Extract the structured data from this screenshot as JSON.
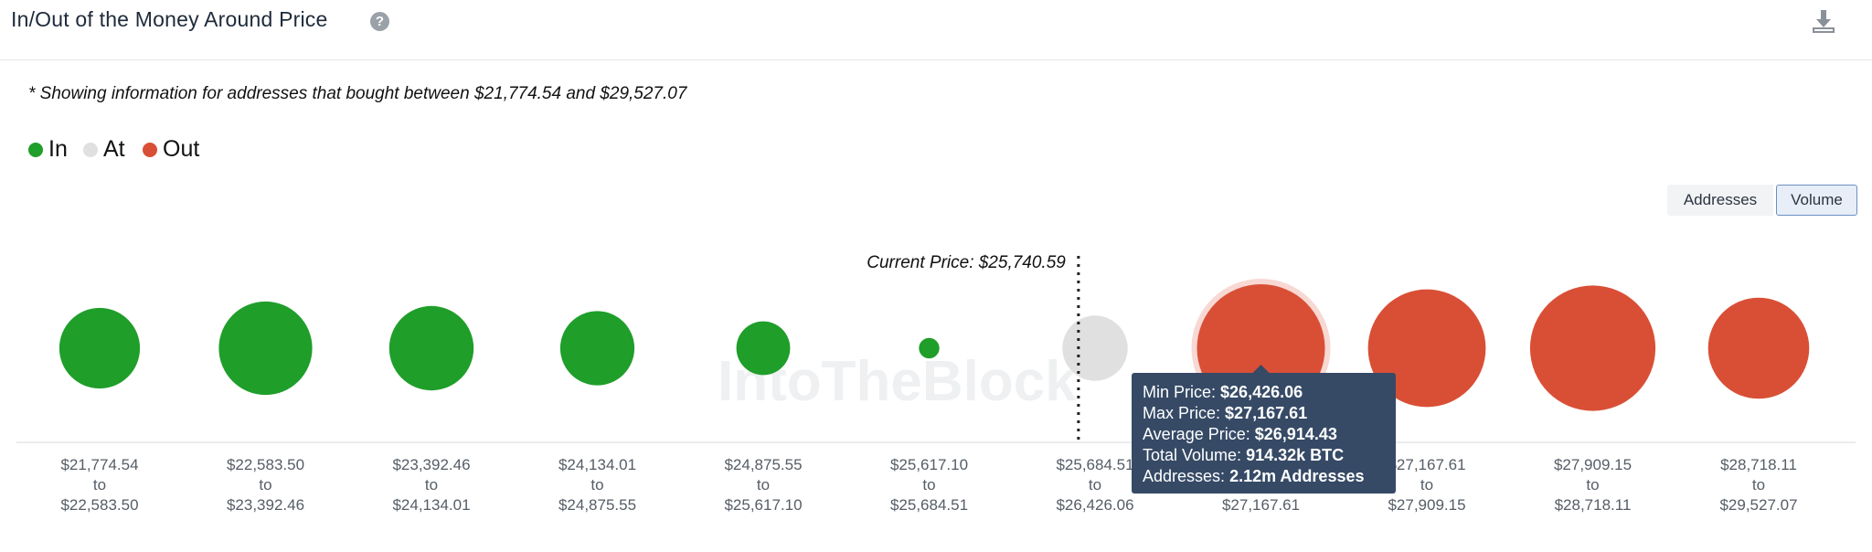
{
  "header": {
    "title": "In/Out of the Money Around Price",
    "help_icon": "question-circle-icon",
    "download_icon": "download-icon"
  },
  "note": "* Showing information for addresses that bought between $21,774.54 and $29,527.07",
  "legend": [
    {
      "label": "In",
      "color": "#1f9e2a"
    },
    {
      "label": "At",
      "color": "#e0e0e0"
    },
    {
      "label": "Out",
      "color": "#d94f36"
    }
  ],
  "toggle": {
    "addresses": "Addresses",
    "volume": "Volume",
    "active": "Volume"
  },
  "watermark": "IntoTheBlock",
  "chart_data": {
    "type": "bubble",
    "title": "In/Out of the Money Around Price",
    "metric": "Volume",
    "current_price_label": "Current Price: $25,740.59",
    "current_price": 25740.59,
    "current_price_after_index": 6,
    "buckets": [
      {
        "from": "$21,774.54",
        "to": "$22,583.50",
        "status": "In",
        "relative_size": 0.63
      },
      {
        "from": "$22,583.50",
        "to": "$23,392.46",
        "status": "In",
        "relative_size": 0.73
      },
      {
        "from": "$23,392.46",
        "to": "$24,134.01",
        "status": "In",
        "relative_size": 0.66
      },
      {
        "from": "$24,134.01",
        "to": "$24,875.55",
        "status": "In",
        "relative_size": 0.58
      },
      {
        "from": "$24,875.55",
        "to": "$25,617.10",
        "status": "In",
        "relative_size": 0.42
      },
      {
        "from": "$25,617.10",
        "to": "$25,684.51",
        "status": "In",
        "relative_size": 0.16
      },
      {
        "from": "$25,684.51",
        "to": "$26,426.06",
        "status": "At",
        "relative_size": 0.51
      },
      {
        "from": "$26,426.06",
        "to": "$27,167.61",
        "status": "Out",
        "relative_size": 1.0,
        "highlighted": true
      },
      {
        "from": "$27,167.61",
        "to": "$27,909.15",
        "status": "Out",
        "relative_size": 0.92
      },
      {
        "from": "$27,909.15",
        "to": "$28,718.11",
        "status": "Out",
        "relative_size": 0.98
      },
      {
        "from": "$28,718.11",
        "to": "$29,527.07",
        "status": "Out",
        "relative_size": 0.79
      }
    ],
    "connector": "to",
    "tooltip": {
      "rows": [
        {
          "label": "Min Price:",
          "value": "$26,426.06"
        },
        {
          "label": "Max Price:",
          "value": "$27,167.61"
        },
        {
          "label": "Average Price:",
          "value": "$26,914.43"
        },
        {
          "label": "Total Volume:",
          "value": "914.32k BTC"
        },
        {
          "label": "Addresses:",
          "value": "2.12m Addresses"
        }
      ]
    }
  }
}
